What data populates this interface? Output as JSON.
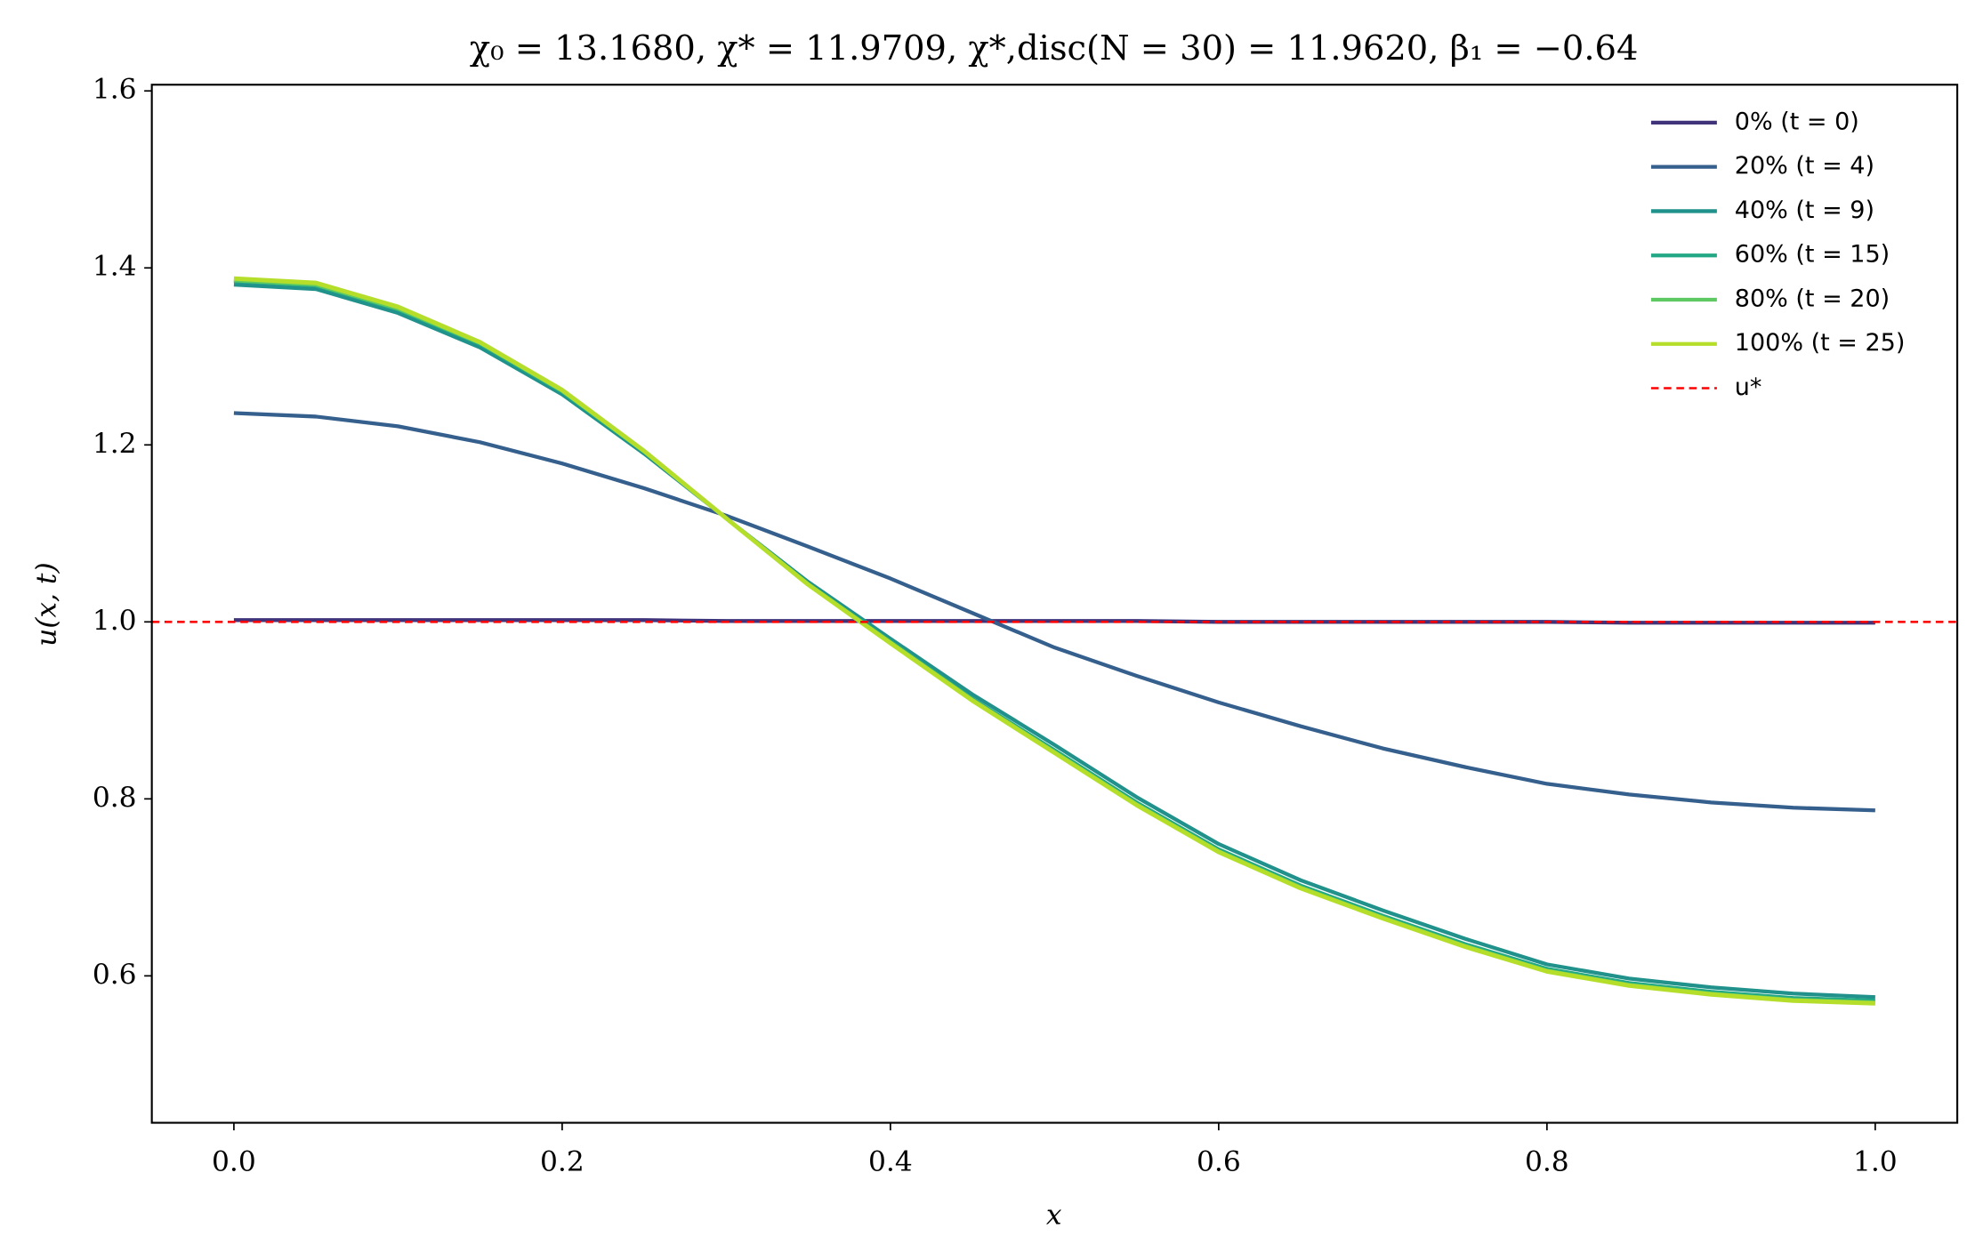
{
  "chart_data": {
    "type": "line",
    "title": "χ₀ = 13.1680,  χ* = 11.9709,  χ*,disc(N = 30) = 11.9620,  β₁ = −0.64",
    "x_label": "x",
    "y_label": "u(x, t)",
    "x": [
      0,
      0.05,
      0.1,
      0.15,
      0.2,
      0.25,
      0.3,
      0.35,
      0.4,
      0.45,
      0.5,
      0.55,
      0.6,
      0.65,
      0.7,
      0.75,
      0.8,
      0.85,
      0.9,
      0.95,
      1.0
    ],
    "series": [
      {
        "name": "0% (t = 0)",
        "color": "#41337a",
        "values": [
          1.002,
          1.002,
          1.002,
          1.002,
          1.002,
          1.002,
          1.001,
          1.001,
          1.001,
          1.001,
          1.001,
          1.001,
          1.0,
          1.0,
          1.0,
          1.0,
          1.0,
          0.999,
          0.999,
          0.999,
          0.999
        ]
      },
      {
        "name": "20% (t = 4)",
        "color": "#355f8d",
        "values": [
          1.236,
          1.232,
          1.221,
          1.203,
          1.179,
          1.151,
          1.12,
          1.085,
          1.049,
          1.01,
          0.971,
          0.939,
          0.909,
          0.882,
          0.857,
          0.836,
          0.817,
          0.805,
          0.796,
          0.79,
          0.787
        ]
      },
      {
        "name": "40% (t = 9)",
        "color": "#21918c",
        "values": [
          1.381,
          1.376,
          1.349,
          1.31,
          1.257,
          1.19,
          1.117,
          1.045,
          0.981,
          0.918,
          0.861,
          0.802,
          0.749,
          0.708,
          0.674,
          0.642,
          0.613,
          0.597,
          0.587,
          0.58,
          0.576
        ]
      },
      {
        "name": "60% (t = 15)",
        "color": "#22a884",
        "values": [
          1.385,
          1.38,
          1.353,
          1.314,
          1.26,
          1.192,
          1.117,
          1.043,
          0.978,
          0.913,
          0.855,
          0.796,
          0.743,
          0.702,
          0.668,
          0.636,
          0.608,
          0.592,
          0.582,
          0.575,
          0.572
        ]
      },
      {
        "name": "80% (t = 20)",
        "color": "#5ec962",
        "values": [
          1.386,
          1.381,
          1.354,
          1.315,
          1.261,
          1.193,
          1.117,
          1.042,
          0.977,
          0.912,
          0.853,
          0.794,
          0.741,
          0.7,
          0.666,
          0.634,
          0.606,
          0.59,
          0.58,
          0.573,
          0.57
        ]
      },
      {
        "name": "100% (t = 25)",
        "color": "#b5de2b",
        "values": [
          1.388,
          1.383,
          1.356,
          1.316,
          1.262,
          1.193,
          1.117,
          1.042,
          0.976,
          0.911,
          0.852,
          0.793,
          0.74,
          0.699,
          0.665,
          0.633,
          0.605,
          0.589,
          0.579,
          0.572,
          0.569
        ]
      }
    ],
    "hlines": [
      {
        "name": "u*",
        "y": 1.0,
        "color": "#ff0000",
        "dash": true
      }
    ],
    "xlim": [
      -0.05,
      1.05
    ],
    "ylim": [
      0.434,
      1.607
    ],
    "xticks": [
      {
        "value": 0,
        "label": "0.0"
      },
      0.2,
      0.4,
      0.6,
      0.8,
      {
        "value": 1.0,
        "label": "1.0"
      }
    ],
    "yticks": [
      0.6,
      0.8,
      {
        "value": 1.0,
        "label": "1.0"
      },
      1.2,
      1.4,
      1.6
    ],
    "grid": false,
    "legend": "upper right"
  }
}
